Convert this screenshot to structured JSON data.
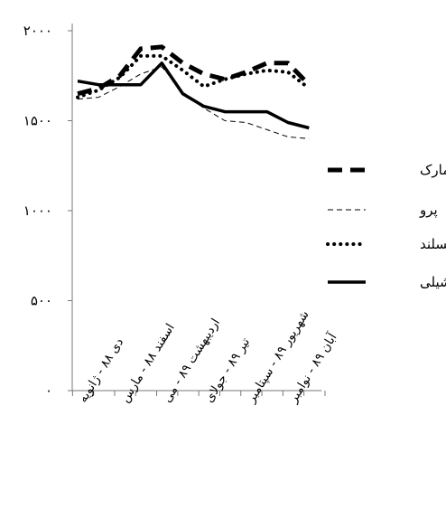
{
  "chart_data": {
    "type": "line",
    "title": "",
    "xlabel": "",
    "ylabel": "",
    "ylim": [
      0,
      2000
    ],
    "y_ticks": [
      {
        "value": 0,
        "label": "۰"
      },
      {
        "value": 500,
        "label": "۵۰۰"
      },
      {
        "value": 1000,
        "label": "۱۰۰۰"
      },
      {
        "value": 1500,
        "label": "۱۵۰۰"
      },
      {
        "value": 2000,
        "label": "۲۰۰۰"
      }
    ],
    "categories": [
      "دی ۸۸ - ژانویه",
      "",
      "اسفند ۸۸ - مارس",
      "",
      "اردیبهشت ۸۹ - می",
      "",
      "تیر ۸۹ - جولای",
      "",
      "شهریور ۸۹ - سپتامبر",
      "",
      "آبان ۸۹ - نوامبر",
      ""
    ],
    "series": [
      {
        "name": "دانمارک",
        "style": "dashed",
        "values": [
          1650,
          1680,
          1750,
          1900,
          1910,
          1820,
          1760,
          1730,
          1770,
          1820,
          1820,
          1700
        ]
      },
      {
        "name": "پرو",
        "style": "thin-dashed",
        "values": [
          1620,
          1630,
          1690,
          1760,
          1800,
          1660,
          1570,
          1500,
          1490,
          1450,
          1410,
          1400
        ]
      },
      {
        "name": "ایسلند",
        "style": "dotted",
        "values": [
          1630,
          1670,
          1740,
          1860,
          1860,
          1780,
          1690,
          1730,
          1760,
          1780,
          1770,
          1680
        ]
      },
      {
        "name": "شیلی",
        "style": "solid",
        "values": [
          1720,
          1700,
          1700,
          1700,
          1820,
          1650,
          1580,
          1550,
          1550,
          1550,
          1490,
          1460
        ]
      }
    ],
    "legend_position": "right",
    "grid": false
  }
}
